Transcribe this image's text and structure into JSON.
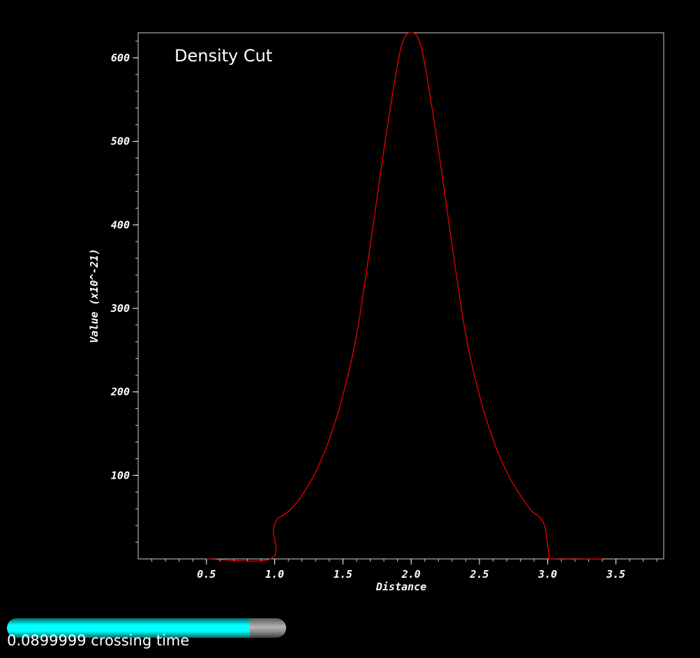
{
  "chart_data": {
    "type": "line",
    "title": "Density Cut",
    "xlabel": "Distance",
    "ylabel": "Value (x10^-21)",
    "xlim": [
      0.0,
      3.85
    ],
    "ylim": [
      0.0,
      630
    ],
    "x_ticks": [
      0.5,
      1.0,
      1.5,
      2.0,
      2.5,
      3.0,
      3.5
    ],
    "x_tick_labels": [
      "0.5",
      "1.0",
      "1.5",
      "2.0",
      "2.5",
      "3.0",
      "3.5"
    ],
    "y_ticks": [
      100,
      200,
      300,
      400,
      500,
      600
    ],
    "y_tick_labels": [
      "100",
      "200",
      "300",
      "400",
      "500",
      "600"
    ],
    "grid": false,
    "series": [
      {
        "color": "#ff0000",
        "x": [
          0.5,
          0.97,
          0.99,
          1.02,
          1.06,
          1.12,
          1.2,
          1.3,
          1.4,
          1.5,
          1.6,
          1.7,
          1.8,
          1.9,
          1.95,
          2.0,
          2.05,
          2.1,
          2.2,
          2.3,
          2.4,
          2.5,
          2.6,
          2.7,
          2.8,
          2.88,
          2.94,
          2.98,
          3.01,
          3.03,
          3.4
        ],
        "y": [
          0,
          0,
          35,
          48,
          52,
          60,
          76,
          104,
          143,
          196,
          268,
          375,
          490,
          592,
          624,
          630,
          624,
          592,
          490,
          375,
          268,
          196,
          143,
          104,
          76,
          58,
          50,
          38,
          5,
          0,
          0
        ]
      }
    ]
  },
  "time_slider": {
    "value_fraction": 0.87,
    "label": "0.0899999 crossing time",
    "fill_color": "#00ffff"
  }
}
